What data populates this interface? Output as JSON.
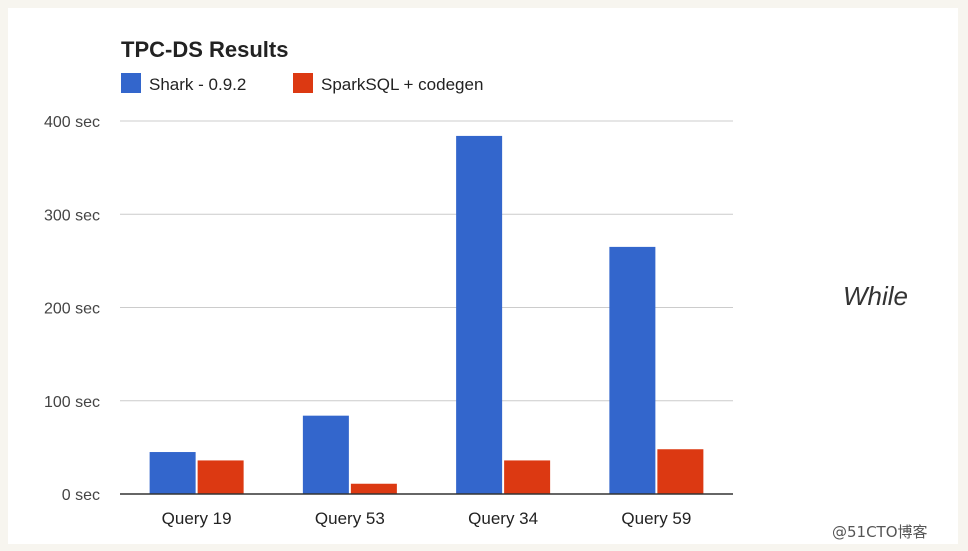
{
  "chart_data": {
    "type": "bar",
    "title": "TPC-DS Results",
    "categories": [
      "Query 19",
      "Query 53",
      "Query 34",
      "Query 59"
    ],
    "series": [
      {
        "name": "Shark - 0.9.2",
        "color": "#3366cc",
        "values": [
          45,
          84,
          384,
          265
        ]
      },
      {
        "name": "SparkSQL + codegen",
        "color": "#dc3912",
        "values": [
          36,
          11,
          36,
          48
        ]
      }
    ],
    "yticks": [
      "0 sec",
      "100 sec",
      "200 sec",
      "300 sec",
      "400 sec"
    ],
    "ytick_values": [
      0,
      100,
      200,
      300,
      400
    ],
    "ylim": [
      0,
      400
    ],
    "xlabel": "",
    "ylabel": "",
    "grid": true,
    "legend": "top-left"
  },
  "side_text": "While",
  "watermark": "@51CTO博客"
}
